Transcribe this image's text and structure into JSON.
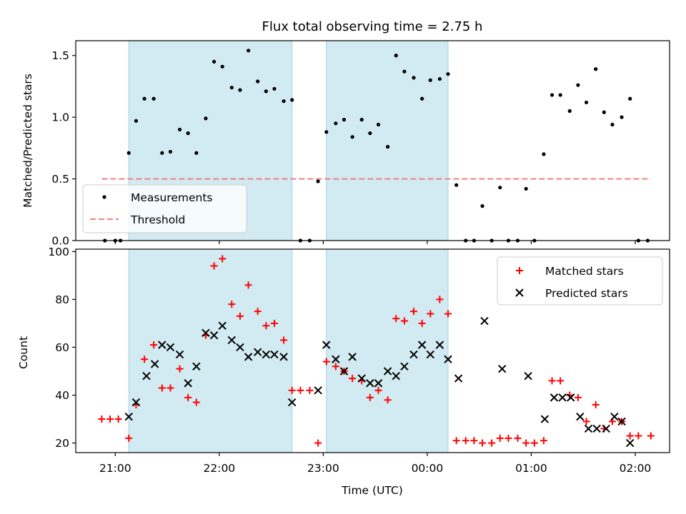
{
  "chart_data": [
    {
      "type": "scatter",
      "title": "Flux total observing time = 2.75 h",
      "xlabel": "",
      "ylabel": "Matched/Predicted stars",
      "ylim": [
        0,
        1.62
      ],
      "yticks": [
        "0.0",
        "0.5",
        "1.0",
        "1.5"
      ],
      "ytick_values": [
        0,
        0.5,
        1.0,
        1.5
      ],
      "threshold": 0.5,
      "legend": {
        "placement": "lower-left",
        "entries": [
          {
            "label": "Measurements",
            "marker": "dot",
            "color": "#000000"
          },
          {
            "label": "Threshold",
            "marker": "dashed-line",
            "color": "#f08080"
          }
        ]
      },
      "series": [
        {
          "name": "Measurements",
          "color": "#000000",
          "points": [
            [
              -0.1,
              0
            ],
            [
              0,
              0
            ],
            [
              0.05,
              0
            ],
            [
              0.13,
              0.71
            ],
            [
              0.2,
              0.97
            ],
            [
              0.28,
              1.15
            ],
            [
              0.37,
              1.15
            ],
            [
              0.45,
              0.71
            ],
            [
              0.53,
              0.72
            ],
            [
              0.62,
              0.9
            ],
            [
              0.7,
              0.87
            ],
            [
              0.78,
              0.71
            ],
            [
              0.87,
              0.99
            ],
            [
              0.95,
              1.45
            ],
            [
              1.03,
              1.41
            ],
            [
              1.12,
              1.24
            ],
            [
              1.2,
              1.22
            ],
            [
              1.28,
              1.54
            ],
            [
              1.37,
              1.29
            ],
            [
              1.45,
              1.21
            ],
            [
              1.53,
              1.23
            ],
            [
              1.62,
              1.13
            ],
            [
              1.7,
              1.14
            ],
            [
              1.78,
              0
            ],
            [
              1.87,
              0
            ],
            [
              1.95,
              0.48
            ],
            [
              2.03,
              0.88
            ],
            [
              2.12,
              0.95
            ],
            [
              2.2,
              0.98
            ],
            [
              2.28,
              0.84
            ],
            [
              2.37,
              0.98
            ],
            [
              2.45,
              0.87
            ],
            [
              2.53,
              0.94
            ],
            [
              2.62,
              0.76
            ],
            [
              2.7,
              1.5
            ],
            [
              2.78,
              1.37
            ],
            [
              2.87,
              1.32
            ],
            [
              2.95,
              1.15
            ],
            [
              3.03,
              1.3
            ],
            [
              3.12,
              1.31
            ],
            [
              3.2,
              1.35
            ],
            [
              3.28,
              0.45
            ],
            [
              3.37,
              0
            ],
            [
              3.45,
              0
            ],
            [
              3.53,
              0.28
            ],
            [
              3.62,
              0
            ],
            [
              3.7,
              0.43
            ],
            [
              3.78,
              0
            ],
            [
              3.87,
              0
            ],
            [
              3.95,
              0.42
            ],
            [
              4.03,
              0
            ],
            [
              4.12,
              0.7
            ],
            [
              4.2,
              1.18
            ],
            [
              4.28,
              1.18
            ],
            [
              4.37,
              1.05
            ],
            [
              4.45,
              1.26
            ],
            [
              4.53,
              1.12
            ],
            [
              4.62,
              1.39
            ],
            [
              4.7,
              1.04
            ],
            [
              4.78,
              0.94
            ],
            [
              4.87,
              1.0
            ],
            [
              4.95,
              1.15
            ],
            [
              5.03,
              0
            ],
            [
              5.12,
              0
            ]
          ]
        }
      ]
    },
    {
      "type": "scatter",
      "title": "",
      "xlabel": "Time (UTC)",
      "ylabel": "Count",
      "ylim": [
        16,
        101
      ],
      "yticks": [
        "20",
        "40",
        "60",
        "80",
        "100"
      ],
      "ytick_values": [
        20,
        40,
        60,
        80,
        100
      ],
      "xticks": [
        "21:00",
        "22:00",
        "23:00",
        "00:00",
        "01:00",
        "02:00"
      ],
      "xtick_values": [
        0,
        1,
        2,
        3,
        4,
        5
      ],
      "xlim": [
        -0.38,
        5.33
      ],
      "legend": {
        "placement": "upper-right",
        "entries": [
          {
            "label": "Matched stars",
            "marker": "plus",
            "color": "#ff0000"
          },
          {
            "label": "Predicted stars",
            "marker": "x",
            "color": "#000000"
          }
        ]
      },
      "series": [
        {
          "name": "Matched stars",
          "color": "#ff0000",
          "points": [
            [
              -0.13,
              30
            ],
            [
              -0.05,
              30
            ],
            [
              0.03,
              30
            ],
            [
              0.13,
              22
            ],
            [
              0.2,
              36
            ],
            [
              0.28,
              55
            ],
            [
              0.37,
              61
            ],
            [
              0.45,
              43
            ],
            [
              0.53,
              43
            ],
            [
              0.62,
              51
            ],
            [
              0.7,
              39
            ],
            [
              0.78,
              37
            ],
            [
              0.87,
              65
            ],
            [
              0.95,
              94
            ],
            [
              1.03,
              97
            ],
            [
              1.12,
              78
            ],
            [
              1.2,
              73
            ],
            [
              1.28,
              86
            ],
            [
              1.37,
              75
            ],
            [
              1.45,
              69
            ],
            [
              1.53,
              70
            ],
            [
              1.62,
              63
            ],
            [
              1.7,
              42
            ],
            [
              1.78,
              42
            ],
            [
              1.87,
              42
            ],
            [
              1.95,
              20
            ],
            [
              2.03,
              54
            ],
            [
              2.12,
              52
            ],
            [
              2.2,
              50
            ],
            [
              2.28,
              47
            ],
            [
              2.37,
              46
            ],
            [
              2.45,
              39
            ],
            [
              2.53,
              42
            ],
            [
              2.62,
              38
            ],
            [
              2.7,
              72
            ],
            [
              2.78,
              71
            ],
            [
              2.87,
              75
            ],
            [
              2.95,
              70
            ],
            [
              3.03,
              74
            ],
            [
              3.12,
              80
            ],
            [
              3.2,
              74
            ],
            [
              3.28,
              21
            ],
            [
              3.37,
              21
            ],
            [
              3.45,
              21
            ],
            [
              3.53,
              20
            ],
            [
              3.62,
              20
            ],
            [
              3.7,
              22
            ],
            [
              3.78,
              22
            ],
            [
              3.87,
              22
            ],
            [
              3.95,
              20
            ],
            [
              4.03,
              20
            ],
            [
              4.12,
              21
            ],
            [
              4.2,
              46
            ],
            [
              4.28,
              46
            ],
            [
              4.37,
              40
            ],
            [
              4.45,
              39
            ],
            [
              4.53,
              29
            ],
            [
              4.62,
              36
            ],
            [
              4.7,
              26
            ],
            [
              4.78,
              29
            ],
            [
              4.87,
              29
            ],
            [
              4.95,
              23
            ],
            [
              5.03,
              23
            ],
            [
              5.15,
              23
            ]
          ]
        },
        {
          "name": "Predicted stars",
          "color": "#000000",
          "points": [
            [
              0.13,
              31
            ],
            [
              0.2,
              37
            ],
            [
              0.3,
              48
            ],
            [
              0.38,
              53
            ],
            [
              0.45,
              61
            ],
            [
              0.53,
              60
            ],
            [
              0.62,
              57
            ],
            [
              0.7,
              45
            ],
            [
              0.78,
              52
            ],
            [
              0.87,
              66
            ],
            [
              0.95,
              65
            ],
            [
              1.03,
              69
            ],
            [
              1.12,
              63
            ],
            [
              1.2,
              60
            ],
            [
              1.28,
              56
            ],
            [
              1.37,
              58
            ],
            [
              1.45,
              57
            ],
            [
              1.53,
              57
            ],
            [
              1.62,
              56
            ],
            [
              1.7,
              37
            ],
            [
              1.95,
              42
            ],
            [
              2.03,
              61
            ],
            [
              2.12,
              55
            ],
            [
              2.2,
              50
            ],
            [
              2.28,
              56
            ],
            [
              2.37,
              47
            ],
            [
              2.45,
              45
            ],
            [
              2.53,
              45
            ],
            [
              2.62,
              50
            ],
            [
              2.7,
              48
            ],
            [
              2.78,
              52
            ],
            [
              2.87,
              57
            ],
            [
              2.95,
              61
            ],
            [
              3.03,
              57
            ],
            [
              3.12,
              61
            ],
            [
              3.2,
              55
            ],
            [
              3.3,
              47
            ],
            [
              3.55,
              71
            ],
            [
              3.72,
              51
            ],
            [
              3.97,
              48
            ],
            [
              4.13,
              30
            ],
            [
              4.22,
              39
            ],
            [
              4.3,
              39
            ],
            [
              4.38,
              39
            ],
            [
              4.47,
              31
            ],
            [
              4.55,
              26
            ],
            [
              4.63,
              26
            ],
            [
              4.72,
              26
            ],
            [
              4.8,
              31
            ],
            [
              4.87,
              29
            ],
            [
              4.95,
              20
            ]
          ]
        }
      ]
    }
  ],
  "shaded_intervals": [
    [
      0.13,
      1.7
    ],
    [
      2.03,
      3.2
    ]
  ],
  "colors": {
    "shade_fill": "#add8e6",
    "shade_edge": "#a6d3de",
    "threshold": "#f08080",
    "matched": "#ff0000",
    "predicted": "#000000"
  }
}
